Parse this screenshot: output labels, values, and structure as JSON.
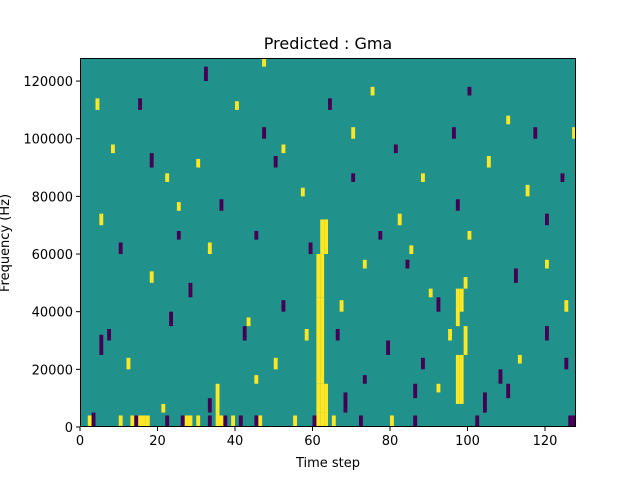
{
  "chart_data": {
    "type": "heatmap",
    "title": "Predicted : Gma",
    "xlabel": "Time step",
    "ylabel": "Frequency (Hz)",
    "xlim": [
      0,
      128
    ],
    "ylim": [
      0,
      128000
    ],
    "x_ticks": [
      0,
      20,
      40,
      60,
      80,
      100,
      120
    ],
    "y_ticks": [
      0,
      20000,
      40000,
      60000,
      80000,
      100000,
      120000
    ],
    "y_tick_labels": [
      "0",
      "20000",
      "40000",
      "60000",
      "80000",
      "100000",
      "120000"
    ],
    "grid": false,
    "legend": "none",
    "colors": {
      "background": "#21918c",
      "high": "#fde725",
      "low": "#440154"
    },
    "high_cells": [
      [
        61,
        0,
        5
      ],
      [
        62,
        0,
        5
      ],
      [
        63,
        0,
        5
      ],
      [
        61,
        5,
        15
      ],
      [
        62,
        5,
        15
      ],
      [
        63,
        5,
        15
      ],
      [
        61,
        15,
        30
      ],
      [
        62,
        15,
        30
      ],
      [
        61,
        30,
        45
      ],
      [
        62,
        30,
        45
      ],
      [
        61,
        45,
        60
      ],
      [
        62,
        45,
        60
      ],
      [
        62,
        60,
        72
      ],
      [
        63,
        60,
        72
      ],
      [
        13,
        0,
        4
      ],
      [
        14,
        0,
        4
      ],
      [
        15,
        0,
        4
      ],
      [
        16,
        0,
        4
      ],
      [
        17,
        0,
        4
      ],
      [
        27,
        0,
        4
      ],
      [
        28,
        0,
        4
      ],
      [
        35,
        0,
        4
      ],
      [
        36,
        0,
        4
      ],
      [
        35,
        4,
        15
      ],
      [
        39,
        0,
        4
      ],
      [
        46,
        0,
        4
      ],
      [
        98,
        8,
        25
      ],
      [
        97,
        8,
        25
      ],
      [
        99,
        25,
        35
      ],
      [
        98,
        40,
        48
      ],
      [
        97,
        35,
        48
      ],
      [
        99,
        48,
        52
      ],
      [
        2,
        0,
        4
      ],
      [
        10,
        0,
        4
      ],
      [
        30,
        0,
        4
      ],
      [
        55,
        0,
        4
      ],
      [
        65,
        0,
        4
      ],
      [
        80,
        0,
        4
      ],
      [
        50,
        20,
        24
      ],
      [
        58,
        30,
        34
      ],
      [
        67,
        40,
        44
      ],
      [
        73,
        55,
        58
      ],
      [
        82,
        70,
        74
      ],
      [
        88,
        85,
        88
      ],
      [
        25,
        75,
        78
      ],
      [
        30,
        90,
        93
      ],
      [
        40,
        110,
        113
      ],
      [
        47,
        125,
        128
      ],
      [
        52,
        95,
        98
      ],
      [
        57,
        80,
        83
      ],
      [
        70,
        100,
        104
      ],
      [
        75,
        115,
        118
      ],
      [
        85,
        60,
        63
      ],
      [
        90,
        45,
        48
      ],
      [
        95,
        30,
        34
      ],
      [
        100,
        65,
        68
      ],
      [
        105,
        90,
        94
      ],
      [
        110,
        105,
        108
      ],
      [
        115,
        80,
        84
      ],
      [
        120,
        55,
        58
      ],
      [
        125,
        40,
        44
      ],
      [
        127,
        100,
        104
      ],
      [
        5,
        70,
        74
      ],
      [
        8,
        95,
        98
      ],
      [
        12,
        20,
        24
      ],
      [
        18,
        50,
        54
      ],
      [
        22,
        85,
        88
      ],
      [
        33,
        60,
        64
      ],
      [
        43,
        35,
        38
      ],
      [
        4,
        110,
        114
      ],
      [
        21,
        5,
        8
      ],
      [
        45,
        15,
        18
      ],
      [
        92,
        12,
        15
      ],
      [
        113,
        22,
        25
      ]
    ],
    "low_cells": [
      [
        3,
        0,
        5
      ],
      [
        14,
        0,
        4
      ],
      [
        22,
        0,
        4
      ],
      [
        26,
        0,
        4
      ],
      [
        33,
        0,
        4
      ],
      [
        37,
        0,
        4
      ],
      [
        41,
        0,
        4
      ],
      [
        45,
        0,
        4
      ],
      [
        60,
        0,
        4
      ],
      [
        72,
        0,
        4
      ],
      [
        86,
        0,
        4
      ],
      [
        102,
        0,
        4
      ],
      [
        126,
        0,
        4
      ],
      [
        127,
        0,
        4
      ],
      [
        33,
        5,
        10
      ],
      [
        68,
        5,
        12
      ],
      [
        86,
        10,
        15
      ],
      [
        104,
        5,
        12
      ],
      [
        110,
        10,
        15
      ],
      [
        5,
        25,
        32
      ],
      [
        7,
        30,
        34
      ],
      [
        23,
        35,
        40
      ],
      [
        42,
        30,
        35
      ],
      [
        66,
        30,
        34
      ],
      [
        88,
        20,
        24
      ],
      [
        92,
        40,
        45
      ],
      [
        108,
        15,
        20
      ],
      [
        120,
        30,
        35
      ],
      [
        18,
        90,
        95
      ],
      [
        32,
        120,
        125
      ],
      [
        70,
        85,
        88
      ],
      [
        47,
        100,
        104
      ],
      [
        59,
        60,
        64
      ],
      [
        77,
        65,
        68
      ],
      [
        81,
        95,
        98
      ],
      [
        97,
        75,
        79
      ],
      [
        112,
        50,
        55
      ],
      [
        120,
        70,
        74
      ],
      [
        125,
        20,
        24
      ],
      [
        10,
        60,
        64
      ],
      [
        15,
        110,
        114
      ],
      [
        28,
        45,
        50
      ],
      [
        36,
        75,
        79
      ],
      [
        52,
        40,
        44
      ],
      [
        64,
        110,
        114
      ],
      [
        79,
        25,
        30
      ],
      [
        100,
        115,
        118
      ],
      [
        117,
        100,
        104
      ],
      [
        124,
        85,
        88
      ],
      [
        84,
        55,
        58
      ],
      [
        73,
        15,
        18
      ],
      [
        45,
        65,
        68
      ],
      [
        25,
        65,
        68
      ],
      [
        50,
        90,
        94
      ],
      [
        96,
        100,
        104
      ]
    ]
  }
}
